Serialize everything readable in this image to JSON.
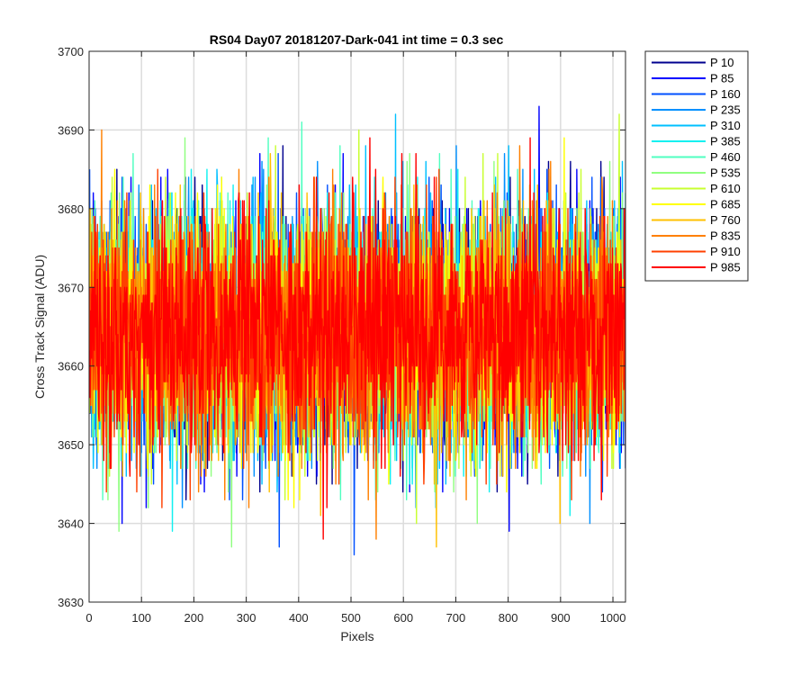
{
  "chart_data": {
    "type": "line",
    "title": "RS04 Day07 20181207-Dark-041 int time = 0.3 sec",
    "xlabel": "Pixels",
    "ylabel": "Cross Track Signal (ADU)",
    "xlim": [
      0,
      1024
    ],
    "ylim": [
      3630,
      3700
    ],
    "xticks": [
      0,
      100,
      200,
      300,
      400,
      500,
      600,
      700,
      800,
      900,
      1000
    ],
    "yticks": [
      3630,
      3640,
      3650,
      3660,
      3670,
      3680,
      3690,
      3700
    ],
    "grid": true,
    "legend_position": "outside-top-right",
    "n_points": 1024,
    "mean_level": 3664.5,
    "noise_std": 7.5,
    "series": [
      {
        "name": "P 10",
        "color": "#00008f"
      },
      {
        "name": "P 85",
        "color": "#0000ff"
      },
      {
        "name": "P 160",
        "color": "#0050ff"
      },
      {
        "name": "P 235",
        "color": "#0090ff"
      },
      {
        "name": "P 310",
        "color": "#00c0ff"
      },
      {
        "name": "P 385",
        "color": "#10f0f0"
      },
      {
        "name": "P 460",
        "color": "#50ffc0"
      },
      {
        "name": "P 535",
        "color": "#90ff80"
      },
      {
        "name": "P 610",
        "color": "#c8ff30"
      },
      {
        "name": "P 685",
        "color": "#ffff00"
      },
      {
        "name": "P 760",
        "color": "#ffc000"
      },
      {
        "name": "P 835",
        "color": "#ff8000"
      },
      {
        "name": "P 910",
        "color": "#ff4000"
      },
      {
        "name": "P 985",
        "color": "#ff0000"
      }
    ]
  }
}
